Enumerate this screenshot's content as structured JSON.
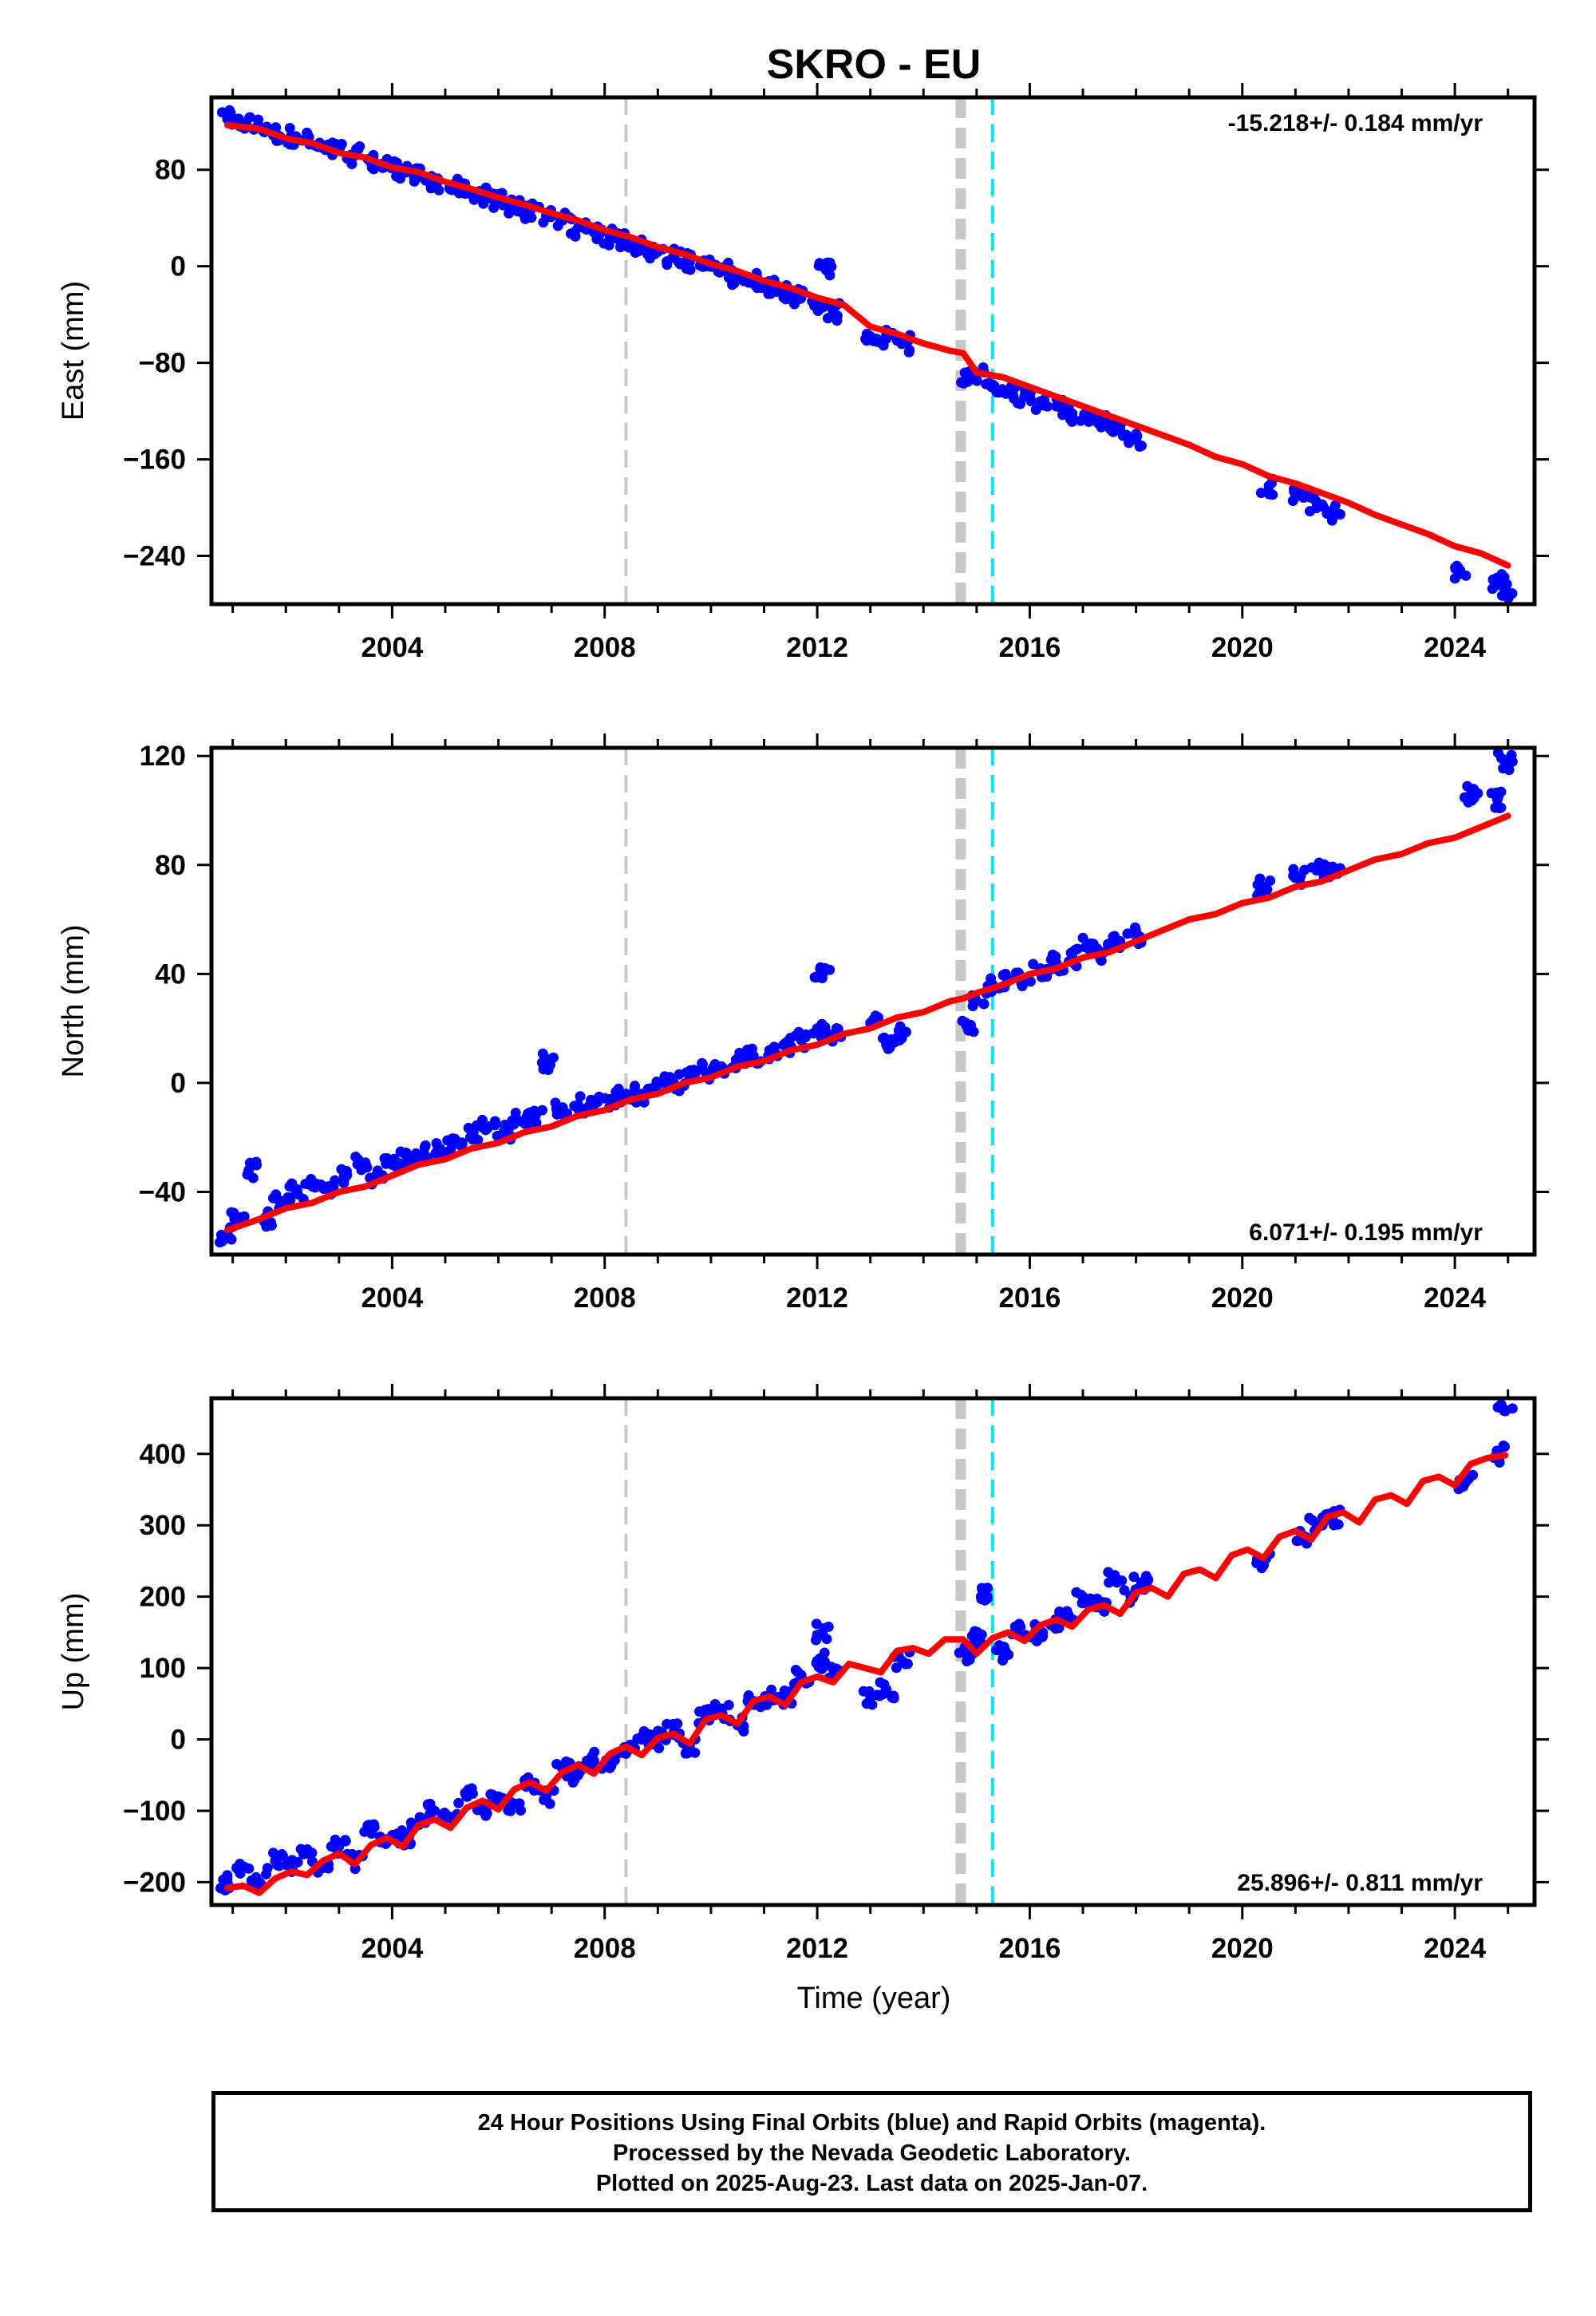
{
  "title": "SKRO - EU",
  "xlabel": "Time (year)",
  "x_ticks": [
    2004,
    2008,
    2012,
    2016,
    2020,
    2024
  ],
  "colors": {
    "final_orbits": "#0000ff",
    "model": "#ff0000",
    "offset_gray": "#c8c8c8",
    "offset_cyan": "#00e5ee"
  },
  "footer": {
    "line1": "24 Hour Positions Using Final Orbits (blue) and Rapid Orbits (magenta).",
    "line2": "Processed by the Nevada Geodetic Laboratory.",
    "line3": "Plotted on 2025-Aug-23. Last data on 2025-Jan-07."
  },
  "chart_data": [
    {
      "type": "scatter",
      "component": "east",
      "ylabel": "East (mm)",
      "rate_label": "-15.218+/- 0.184 mm/yr",
      "rate_label_position": "top-right",
      "xlim": [
        2000.6,
        2025.5
      ],
      "ylim": [
        -280,
        140
      ],
      "y_ticks": [
        80,
        0,
        -80,
        -160,
        -240
      ],
      "offsets": [
        {
          "x": 2008.4,
          "style": "dashed-gray-thin"
        },
        {
          "x": 2014.7,
          "style": "dashed-gray-thick"
        },
        {
          "x": 2015.3,
          "style": "dashed-cyan"
        }
      ],
      "series": [
        {
          "kind": "points",
          "x": [
            2000.9,
            2001.2,
            2001.5,
            2001.8,
            2002.1,
            2002.4,
            2002.7,
            2003.0,
            2003.3,
            2003.6,
            2003.9,
            2004.2,
            2004.5,
            2004.8,
            2005.1,
            2005.4,
            2005.7,
            2006.0,
            2006.3,
            2006.6,
            2006.9,
            2007.2,
            2007.5,
            2007.8,
            2008.1,
            2008.4,
            2008.7,
            2009.0,
            2009.3,
            2009.6,
            2009.9,
            2010.2,
            2010.5,
            2010.8,
            2011.1,
            2011.4,
            2011.7,
            2012.0,
            2012.15,
            2012.3,
            2013.0,
            2013.3,
            2013.6,
            2014.8,
            2015.0,
            2015.3,
            2015.6,
            2015.9,
            2016.2,
            2016.5,
            2016.8,
            2017.1,
            2017.4,
            2017.7,
            2018.0,
            2020.5,
            2021.1,
            2021.4,
            2021.7,
            2024.1,
            2024.8,
            2024.95
          ],
          "y": [
            122,
            118,
            116,
            110,
            108,
            104,
            98,
            96,
            92,
            86,
            84,
            80,
            74,
            70,
            66,
            62,
            58,
            54,
            50,
            46,
            42,
            38,
            32,
            28,
            24,
            22,
            16,
            12,
            8,
            4,
            0,
            -4,
            -8,
            -12,
            -16,
            -20,
            -26,
            -30,
            -2,
            -38,
            -58,
            -60,
            -64,
            -94,
            -90,
            -98,
            -104,
            -108,
            -112,
            -116,
            -122,
            -124,
            -130,
            -134,
            -144,
            -182,
            -188,
            -196,
            -204,
            -252,
            -262,
            -268
          ]
        },
        {
          "kind": "model",
          "x": [
            2000.9,
            2001.5,
            2002.0,
            2002.5,
            2003.0,
            2003.5,
            2004.0,
            2004.5,
            2005.0,
            2005.5,
            2006.0,
            2006.5,
            2007.0,
            2007.5,
            2008.0,
            2008.5,
            2009.0,
            2009.5,
            2010.0,
            2010.5,
            2011.0,
            2011.5,
            2012.0,
            2012.5,
            2013.0,
            2013.5,
            2014.0,
            2014.5,
            2014.75,
            2015.0,
            2015.5,
            2016.0,
            2016.5,
            2017.0,
            2017.5,
            2018.0,
            2018.5,
            2019.0,
            2019.5,
            2020.0,
            2020.5,
            2021.0,
            2021.5,
            2022.0,
            2022.5,
            2023.0,
            2023.5,
            2024.0,
            2024.5,
            2025.0
          ],
          "y": [
            117,
            114,
            106,
            102,
            94,
            90,
            82,
            78,
            70,
            64,
            57,
            51,
            44,
            38,
            30,
            24,
            16,
            10,
            2,
            -4,
            -12,
            -18,
            -26,
            -32,
            -50,
            -56,
            -64,
            -70,
            -72,
            -88,
            -92,
            -100,
            -108,
            -116,
            -124,
            -132,
            -140,
            -148,
            -158,
            -164,
            -174,
            -180,
            -188,
            -196,
            -206,
            -214,
            -222,
            -232,
            -238,
            -248
          ]
        }
      ]
    },
    {
      "type": "scatter",
      "component": "north",
      "ylabel": "North (mm)",
      "rate_label": "6.071+/- 0.195 mm/yr",
      "rate_label_position": "bottom-right",
      "xlim": [
        2000.6,
        2025.5
      ],
      "ylim": [
        -63,
        123
      ],
      "y_ticks": [
        120,
        80,
        40,
        0,
        -40
      ],
      "offsets": [
        {
          "x": 2008.4,
          "style": "dashed-gray-thin"
        },
        {
          "x": 2014.7,
          "style": "dashed-gray-thick"
        },
        {
          "x": 2015.3,
          "style": "dashed-cyan"
        }
      ],
      "series": [
        {
          "kind": "points",
          "x": [
            2000.9,
            2001.1,
            2001.3,
            2001.6,
            2001.9,
            2002.2,
            2002.5,
            2002.8,
            2003.1,
            2003.4,
            2003.7,
            2004.0,
            2004.3,
            2004.6,
            2004.9,
            2005.2,
            2005.5,
            2005.8,
            2006.1,
            2006.4,
            2006.7,
            2006.9,
            2007.2,
            2007.5,
            2007.8,
            2008.1,
            2008.4,
            2008.7,
            2009.0,
            2009.3,
            2009.6,
            2009.9,
            2010.2,
            2010.5,
            2010.8,
            2011.1,
            2011.4,
            2011.7,
            2012.0,
            2012.1,
            2012.3,
            2013.0,
            2013.3,
            2013.6,
            2014.8,
            2015.0,
            2015.3,
            2015.6,
            2015.9,
            2016.2,
            2016.5,
            2016.8,
            2017.1,
            2017.4,
            2017.7,
            2018.0,
            2020.4,
            2021.1,
            2021.4,
            2021.7,
            2024.3,
            2024.8,
            2024.95
          ],
          "y": [
            -56,
            -50,
            -32,
            -50,
            -44,
            -40,
            -38,
            -38,
            -34,
            -30,
            -34,
            -30,
            -28,
            -26,
            -24,
            -22,
            -18,
            -16,
            -18,
            -14,
            -12,
            8,
            -10,
            -8,
            -8,
            -6,
            -4,
            -4,
            0,
            0,
            2,
            4,
            6,
            8,
            10,
            12,
            14,
            16,
            20,
            40,
            18,
            22,
            14,
            18,
            22,
            30,
            36,
            38,
            38,
            42,
            44,
            46,
            50,
            48,
            52,
            54,
            72,
            76,
            78,
            78,
            106,
            104,
            118
          ]
        },
        {
          "kind": "model",
          "x": [
            2000.9,
            2001.5,
            2002.0,
            2002.5,
            2003.0,
            2003.5,
            2004.0,
            2004.5,
            2005.0,
            2005.5,
            2006.0,
            2006.5,
            2007.0,
            2007.5,
            2008.0,
            2008.5,
            2009.0,
            2009.5,
            2010.0,
            2010.5,
            2011.0,
            2011.5,
            2012.0,
            2012.5,
            2013.0,
            2013.5,
            2014.0,
            2014.5,
            2014.75,
            2015.0,
            2015.5,
            2016.0,
            2016.5,
            2017.0,
            2017.5,
            2018.0,
            2018.5,
            2019.0,
            2019.5,
            2020.0,
            2020.5,
            2021.0,
            2021.5,
            2022.0,
            2022.5,
            2023.0,
            2023.5,
            2024.0,
            2024.5,
            2025.0
          ],
          "y": [
            -54,
            -50,
            -46,
            -44,
            -40,
            -38,
            -34,
            -30,
            -28,
            -24,
            -22,
            -18,
            -16,
            -12,
            -10,
            -6,
            -4,
            0,
            2,
            6,
            8,
            12,
            14,
            18,
            20,
            24,
            26,
            30,
            31,
            33,
            36,
            40,
            42,
            46,
            48,
            52,
            56,
            60,
            62,
            66,
            68,
            72,
            74,
            78,
            82,
            84,
            88,
            90,
            94,
            98
          ]
        }
      ]
    },
    {
      "type": "scatter",
      "component": "up",
      "ylabel": "Up (mm)",
      "rate_label": "25.896+/- 0.811 mm/yr",
      "rate_label_position": "bottom-right",
      "xlim": [
        2000.6,
        2025.5
      ],
      "ylim": [
        -232,
        478
      ],
      "y_ticks": [
        400,
        300,
        200,
        100,
        0,
        -100,
        -200
      ],
      "offsets": [
        {
          "x": 2008.4,
          "style": "dashed-gray-thin"
        },
        {
          "x": 2014.7,
          "style": "dashed-gray-thick"
        },
        {
          "x": 2015.3,
          "style": "dashed-cyan"
        }
      ],
      "series": [
        {
          "kind": "points",
          "x": [
            2000.9,
            2001.2,
            2001.5,
            2001.8,
            2002.1,
            2002.4,
            2002.7,
            2003.0,
            2003.3,
            2003.6,
            2003.9,
            2004.2,
            2004.5,
            2004.8,
            2005.1,
            2005.4,
            2005.7,
            2006.0,
            2006.3,
            2006.6,
            2006.9,
            2007.2,
            2007.5,
            2007.8,
            2008.1,
            2008.4,
            2008.7,
            2009.0,
            2009.3,
            2009.6,
            2009.9,
            2010.2,
            2010.5,
            2010.8,
            2011.1,
            2011.4,
            2011.7,
            2012.0,
            2012.1,
            2012.3,
            2013.0,
            2013.3,
            2013.6,
            2014.8,
            2015.0,
            2015.2,
            2015.5,
            2015.8,
            2016.1,
            2016.4,
            2016.7,
            2017.0,
            2017.3,
            2017.6,
            2017.9,
            2018.1,
            2020.4,
            2021.1,
            2021.4,
            2021.7,
            2024.2,
            2024.8,
            2024.95
          ],
          "y": [
            -200,
            -180,
            -200,
            -170,
            -180,
            -160,
            -180,
            -150,
            -170,
            -120,
            -140,
            -140,
            -120,
            -100,
            -110,
            -80,
            -100,
            -80,
            -90,
            -60,
            -80,
            -40,
            -50,
            -30,
            -40,
            -20,
            0,
            0,
            10,
            -10,
            30,
            40,
            20,
            50,
            60,
            60,
            90,
            110,
            150,
            90,
            60,
            70,
            110,
            120,
            140,
            200,
            120,
            150,
            150,
            160,
            170,
            200,
            190,
            230,
            200,
            220,
            250,
            280,
            300,
            310,
            360,
            400,
            460
          ]
        },
        {
          "kind": "model",
          "x": [
            2000.9,
            2001.2,
            2001.5,
            2001.8,
            2002.1,
            2002.4,
            2002.7,
            2003.0,
            2003.3,
            2003.6,
            2003.9,
            2004.2,
            2004.5,
            2004.8,
            2005.1,
            2005.4,
            2005.7,
            2006.0,
            2006.3,
            2006.6,
            2006.9,
            2007.2,
            2007.5,
            2007.8,
            2008.1,
            2008.4,
            2008.7,
            2009.0,
            2009.3,
            2009.6,
            2009.9,
            2010.2,
            2010.5,
            2010.8,
            2011.1,
            2011.4,
            2011.7,
            2012.0,
            2012.3,
            2012.6,
            2012.9,
            2013.2,
            2013.5,
            2013.8,
            2014.1,
            2014.4,
            2014.75,
            2015.0,
            2015.3,
            2015.6,
            2015.9,
            2016.2,
            2016.5,
            2016.8,
            2017.1,
            2017.4,
            2017.7,
            2018.0,
            2018.3,
            2018.6,
            2018.9,
            2019.2,
            2019.5,
            2019.8,
            2020.1,
            2020.4,
            2020.7,
            2021.0,
            2021.3,
            2021.6,
            2021.9,
            2022.2,
            2022.5,
            2022.8,
            2023.1,
            2023.4,
            2023.7,
            2024.0,
            2024.3,
            2024.6,
            2024.95
          ],
          "y": [
            -208,
            -205,
            -215,
            -195,
            -185,
            -190,
            -170,
            -160,
            -175,
            -148,
            -138,
            -150,
            -120,
            -112,
            -124,
            -96,
            -86,
            -98,
            -70,
            -60,
            -72,
            -46,
            -36,
            -48,
            -20,
            -10,
            -22,
            2,
            8,
            -6,
            28,
            34,
            22,
            54,
            60,
            48,
            80,
            88,
            80,
            106,
            100,
            94,
            124,
            128,
            120,
            140,
            140,
            120,
            142,
            150,
            138,
            160,
            168,
            158,
            182,
            188,
            176,
            206,
            212,
            200,
            232,
            238,
            226,
            258,
            266,
            254,
            284,
            292,
            280,
            312,
            318,
            304,
            336,
            342,
            330,
            362,
            368,
            356,
            386,
            394,
            398
          ]
        }
      ]
    }
  ]
}
